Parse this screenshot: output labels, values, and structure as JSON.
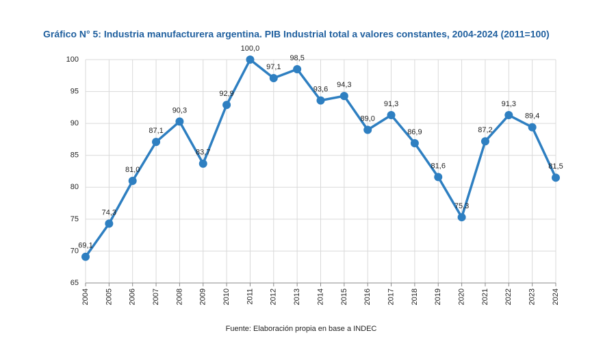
{
  "chart_data": {
    "type": "line",
    "title": "Gráfico N° 5: Industria manufacturera argentina. PIB Industrial total a valores constantes, 2004-2024 (2011=100)",
    "categories": [
      "2004",
      "2005",
      "2006",
      "2007",
      "2008",
      "2009",
      "2010",
      "2011",
      "2012",
      "2013",
      "2014",
      "2015",
      "2016",
      "2017",
      "2018",
      "2019",
      "2020",
      "2021",
      "2022",
      "2023",
      "2024"
    ],
    "values": [
      69.1,
      74.3,
      81.0,
      87.1,
      90.3,
      83.7,
      92.9,
      100.0,
      97.1,
      98.5,
      93.6,
      94.3,
      89.0,
      91.3,
      86.9,
      81.6,
      75.3,
      87.2,
      91.3,
      89.4,
      81.5
    ],
    "value_labels": [
      "69,1",
      "74,3",
      "81,0",
      "87,1",
      "90,3",
      "83,7",
      "92,9",
      "100,0",
      "97,1",
      "98,5",
      "93,6",
      "94,3",
      "89,0",
      "91,3",
      "86,9",
      "81,6",
      "75,3",
      "87,2",
      "91,3",
      "89,4",
      "81,5"
    ],
    "color": "#2e7fc1",
    "ylim": [
      65,
      100
    ],
    "yticks": [
      65,
      70,
      75,
      80,
      85,
      90,
      95,
      100
    ],
    "grid": true,
    "source": "Fuente: Elaboración propia en base a INDEC"
  }
}
